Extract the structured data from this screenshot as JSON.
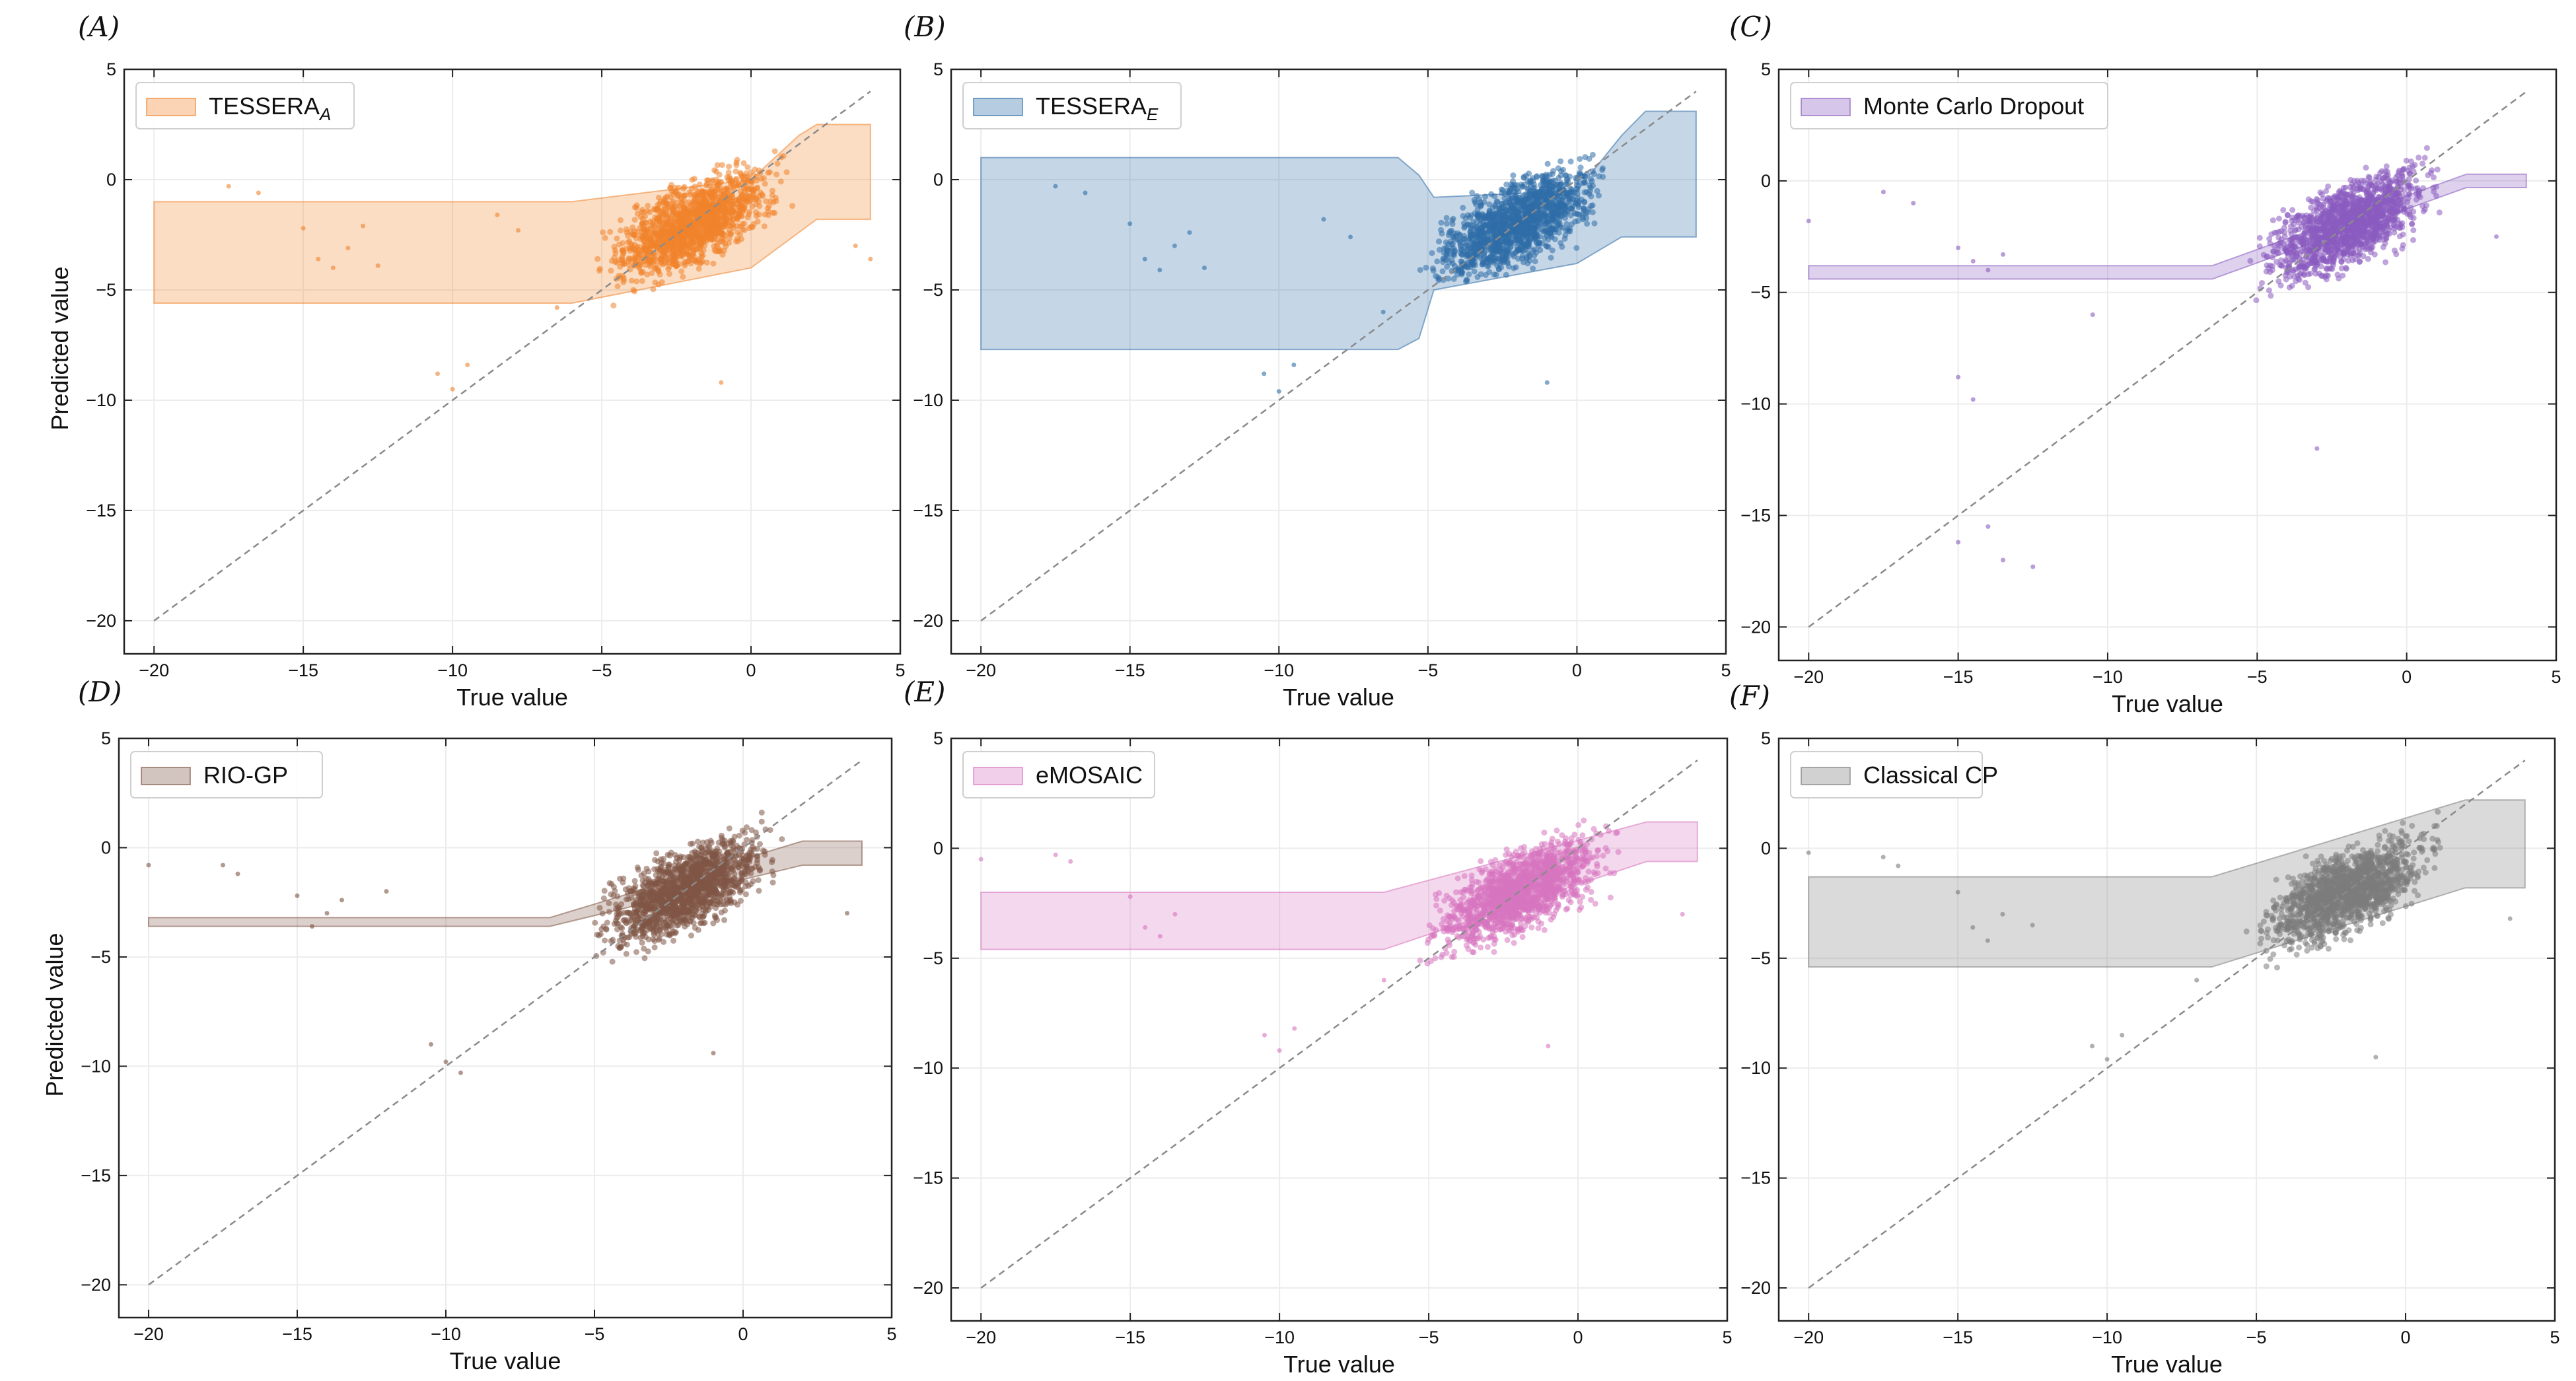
{
  "chart_data": [
    {
      "panel": "(A)",
      "type": "scatter",
      "legend": {
        "main": "TESSERA",
        "sub": "A"
      },
      "color": "#f0842c",
      "xlabel": "True value",
      "ylabel": "Predicted value",
      "xlim": [
        -21,
        5
      ],
      "ylim": [
        -21.5,
        5
      ],
      "xticks": [
        -20,
        -15,
        -10,
        -5,
        0,
        5
      ],
      "yticks": [
        5,
        0,
        -5,
        -10,
        -15,
        -20
      ],
      "grid": true,
      "legend_position": "top-left",
      "identity_line": [
        [
          -20,
          -20
        ],
        [
          4,
          4
        ]
      ],
      "cloud": {
        "x_center": -2.0,
        "y_center": -2.0,
        "x_range": [
          -7,
          2.5
        ],
        "y_range": [
          -6,
          2
        ]
      },
      "interval_band": [
        {
          "x": -20,
          "lower": -5.6,
          "upper": -1.0
        },
        {
          "x": -6,
          "lower": -5.6,
          "upper": -1.0
        },
        {
          "x": 0,
          "lower": -4.0,
          "upper": 0.0
        },
        {
          "x": 1.6,
          "lower": -2.4,
          "upper": 2.0
        },
        {
          "x": 2.2,
          "lower": -1.8,
          "upper": 2.5
        },
        {
          "x": 4,
          "lower": -1.8,
          "upper": 2.5
        }
      ],
      "outliers": [
        [
          -17.5,
          -0.3
        ],
        [
          -16.5,
          -0.6
        ],
        [
          -15,
          -2.2
        ],
        [
          -14.5,
          -3.6
        ],
        [
          -14,
          -4.0
        ],
        [
          -13.5,
          -3.1
        ],
        [
          -13,
          -2.1
        ],
        [
          -12.5,
          -3.9
        ],
        [
          -10.5,
          -8.8
        ],
        [
          -10,
          -9.5
        ],
        [
          -9.5,
          -8.4
        ],
        [
          -8.5,
          -1.6
        ],
        [
          -7.8,
          -2.3
        ],
        [
          -1,
          -9.2
        ],
        [
          -6.5,
          -5.8
        ],
        [
          3.5,
          -3.0
        ],
        [
          4,
          -3.6
        ]
      ]
    },
    {
      "panel": "(B)",
      "type": "scatter",
      "legend": {
        "main": "TESSERA",
        "sub": "E"
      },
      "color": "#2f6ea8",
      "xlabel": "True value",
      "ylabel": "",
      "xlim": [
        -21,
        5
      ],
      "ylim": [
        -21.5,
        5
      ],
      "xticks": [
        -20,
        -15,
        -10,
        -5,
        0,
        5
      ],
      "yticks": [
        5,
        0,
        -5,
        -10,
        -15,
        -20
      ],
      "grid": true,
      "legend_position": "top-left",
      "identity_line": [
        [
          -20,
          -20
        ],
        [
          4,
          4
        ]
      ],
      "cloud": {
        "x_center": -2.0,
        "y_center": -2.0,
        "x_range": [
          -7,
          2.5
        ],
        "y_range": [
          -6,
          2
        ]
      },
      "interval_band": [
        {
          "x": -20,
          "lower": -7.7,
          "upper": 1.0
        },
        {
          "x": -6,
          "lower": -7.7,
          "upper": 1.0
        },
        {
          "x": -5.3,
          "lower": -7.2,
          "upper": 0.2
        },
        {
          "x": -4.8,
          "lower": -5.0,
          "upper": -0.8
        },
        {
          "x": 0,
          "lower": -3.8,
          "upper": -0.5
        },
        {
          "x": 1.5,
          "lower": -2.6,
          "upper": 2.0
        },
        {
          "x": 2.3,
          "lower": -2.6,
          "upper": 3.1
        },
        {
          "x": 4,
          "lower": -2.6,
          "upper": 3.1
        }
      ],
      "outliers": [
        [
          -17.5,
          -0.3
        ],
        [
          -16.5,
          -0.6
        ],
        [
          -15,
          -2.0
        ],
        [
          -14.5,
          -3.6
        ],
        [
          -14,
          -4.1
        ],
        [
          -13.5,
          -3.0
        ],
        [
          -13,
          -2.4
        ],
        [
          -12.5,
          -4.0
        ],
        [
          -10.5,
          -8.8
        ],
        [
          -10,
          -9.6
        ],
        [
          -9.5,
          -8.4
        ],
        [
          -8.5,
          -1.8
        ],
        [
          -7.6,
          -2.6
        ],
        [
          -1,
          -9.2
        ],
        [
          -6.5,
          -6.0
        ]
      ]
    },
    {
      "panel": "(C)",
      "type": "scatter",
      "legend": {
        "main": "Monte Carlo Dropout",
        "sub": ""
      },
      "color": "#8a5bbf",
      "xlabel": "True value",
      "ylabel": "",
      "xlim": [
        -21,
        5
      ],
      "ylim": [
        -21.5,
        5
      ],
      "xticks": [
        -20,
        -15,
        -10,
        -5,
        0,
        5
      ],
      "yticks": [
        5,
        0,
        -5,
        -10,
        -15,
        -20
      ],
      "grid": true,
      "legend_position": "top-left",
      "identity_line": [
        [
          -20,
          -20
        ],
        [
          4,
          4
        ]
      ],
      "cloud": {
        "x_center": -2.0,
        "y_center": -2.0,
        "x_range": [
          -7,
          2.5
        ],
        "y_range": [
          -6.5,
          2
        ]
      },
      "interval_band": [
        {
          "x": -20,
          "lower": -4.4,
          "upper": -3.8
        },
        {
          "x": -6.5,
          "lower": -4.4,
          "upper": -3.8
        },
        {
          "x": 2,
          "lower": -0.3,
          "upper": 0.3
        },
        {
          "x": 4,
          "lower": -0.3,
          "upper": 0.3
        }
      ],
      "outliers": [
        [
          -20,
          -1.8
        ],
        [
          -17.5,
          -0.5
        ],
        [
          -16.5,
          -1.0
        ],
        [
          -15,
          -3.0
        ],
        [
          -14.5,
          -3.6
        ],
        [
          -14,
          -4.0
        ],
        [
          -13.5,
          -3.3
        ],
        [
          -15,
          -8.8
        ],
        [
          -14.5,
          -9.8
        ],
        [
          -14,
          -15.5
        ],
        [
          -15,
          -16.2
        ],
        [
          -13.5,
          -17.0
        ],
        [
          -12.5,
          -17.3
        ],
        [
          -3,
          -12.0
        ],
        [
          -10.5,
          -6.0
        ],
        [
          3,
          -2.5
        ]
      ]
    },
    {
      "panel": "(D)",
      "type": "scatter",
      "legend": {
        "main": "RIO-GP",
        "sub": ""
      },
      "color": "#7f5546",
      "xlabel": "True value",
      "ylabel": "Predicted value",
      "xlim": [
        -21,
        5
      ],
      "ylim": [
        -21.5,
        5
      ],
      "xticks": [
        -20,
        -15,
        -10,
        -5,
        0,
        5
      ],
      "yticks": [
        5,
        0,
        -5,
        -10,
        -15,
        -20
      ],
      "grid": true,
      "legend_position": "top-left",
      "identity_line": [
        [
          -20,
          -20
        ],
        [
          4,
          4
        ]
      ],
      "cloud": {
        "x_center": -2.0,
        "y_center": -2.0,
        "x_range": [
          -7,
          2.5
        ],
        "y_range": [
          -6,
          2
        ]
      },
      "interval_band": [
        {
          "x": -20,
          "lower": -3.6,
          "upper": -3.2
        },
        {
          "x": -6.5,
          "lower": -3.6,
          "upper": -3.2
        },
        {
          "x": 2,
          "lower": -0.8,
          "upper": 0.3
        },
        {
          "x": 4,
          "lower": -0.8,
          "upper": 0.3
        }
      ],
      "outliers": [
        [
          -20,
          -0.8
        ],
        [
          -17.5,
          -0.8
        ],
        [
          -17,
          -1.2
        ],
        [
          -15,
          -2.2
        ],
        [
          -14.5,
          -3.6
        ],
        [
          -14,
          -3.0
        ],
        [
          -13.5,
          -2.4
        ],
        [
          -12,
          -2.0
        ],
        [
          -10.5,
          -9.0
        ],
        [
          -10,
          -9.8
        ],
        [
          -9.5,
          -10.3
        ],
        [
          -1,
          -9.4
        ],
        [
          3.5,
          -3.0
        ]
      ]
    },
    {
      "panel": "(E)",
      "type": "scatter",
      "legend": {
        "main": "eMOSAIC",
        "sub": ""
      },
      "color": "#d774c0",
      "xlabel": "True value",
      "ylabel": "",
      "xlim": [
        -21,
        5
      ],
      "ylim": [
        -21.5,
        5
      ],
      "xticks": [
        -20,
        -15,
        -10,
        -5,
        0,
        5
      ],
      "yticks": [
        5,
        0,
        -5,
        -10,
        -15,
        -20
      ],
      "grid": true,
      "legend_position": "top-left",
      "identity_line": [
        [
          -20,
          -20
        ],
        [
          4,
          4
        ]
      ],
      "cloud": {
        "x_center": -2.0,
        "y_center": -2.0,
        "x_range": [
          -7,
          2.5
        ],
        "y_range": [
          -6,
          2
        ]
      },
      "interval_band": [
        {
          "x": -20,
          "lower": -4.6,
          "upper": -2.0
        },
        {
          "x": -6.5,
          "lower": -4.6,
          "upper": -2.0
        },
        {
          "x": 2.3,
          "lower": -0.6,
          "upper": 1.2
        },
        {
          "x": 4,
          "lower": -0.6,
          "upper": 1.2
        }
      ],
      "outliers": [
        [
          -20,
          -0.5
        ],
        [
          -17.5,
          -0.3
        ],
        [
          -17,
          -0.6
        ],
        [
          -15,
          -2.2
        ],
        [
          -14.5,
          -3.6
        ],
        [
          -14,
          -4.0
        ],
        [
          -13.5,
          -3.0
        ],
        [
          -10.5,
          -8.5
        ],
        [
          -10,
          -9.2
        ],
        [
          -9.5,
          -8.2
        ],
        [
          -6.5,
          -6.0
        ],
        [
          -1,
          -9.0
        ],
        [
          3.5,
          -3.0
        ]
      ]
    },
    {
      "panel": "(F)",
      "type": "scatter",
      "legend": {
        "main": "Classical CP",
        "sub": ""
      },
      "color": "#7b7b7b",
      "xlabel": "True value",
      "ylabel": "",
      "xlim": [
        -21,
        5
      ],
      "ylim": [
        -21.5,
        5
      ],
      "xticks": [
        -20,
        -15,
        -10,
        -5,
        0,
        5
      ],
      "yticks": [
        5,
        0,
        -5,
        -10,
        -15,
        -20
      ],
      "grid": true,
      "legend_position": "top-left",
      "identity_line": [
        [
          -20,
          -20
        ],
        [
          4,
          4
        ]
      ],
      "cloud": {
        "x_center": -2.0,
        "y_center": -2.0,
        "x_range": [
          -7,
          2.5
        ],
        "y_range": [
          -6,
          2
        ]
      },
      "interval_band": [
        {
          "x": -20,
          "lower": -5.4,
          "upper": -1.3
        },
        {
          "x": -6.5,
          "lower": -5.4,
          "upper": -1.3
        },
        {
          "x": 2,
          "lower": -1.8,
          "upper": 2.2
        },
        {
          "x": 4,
          "lower": -1.8,
          "upper": 2.2
        }
      ],
      "outliers": [
        [
          -20,
          -0.2
        ],
        [
          -17.5,
          -0.4
        ],
        [
          -17,
          -0.8
        ],
        [
          -15,
          -2.0
        ],
        [
          -14.5,
          -3.6
        ],
        [
          -14,
          -4.2
        ],
        [
          -13.5,
          -3.0
        ],
        [
          -12.5,
          -3.5
        ],
        [
          -10.5,
          -9.0
        ],
        [
          -10,
          -9.6
        ],
        [
          -9.5,
          -8.5
        ],
        [
          -7,
          -6.0
        ],
        [
          -1,
          -9.5
        ],
        [
          3.5,
          -3.2
        ]
      ]
    }
  ]
}
